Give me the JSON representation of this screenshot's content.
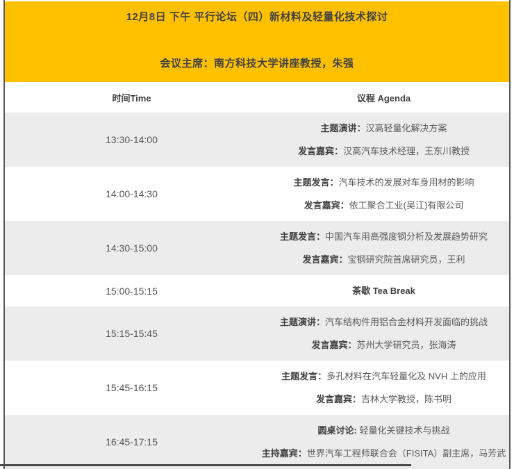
{
  "banner": {
    "title": "12月8日 下午 平行论坛（四）新材料及轻量化技术探讨",
    "chair": "会议主席：南方科技大学讲座教授，朱强"
  },
  "table": {
    "columns": {
      "time": "时间Time",
      "agenda": "议程 Agenda"
    },
    "rows": [
      {
        "time": "13:30-14:00",
        "lines": [
          {
            "label": "主题演讲：",
            "text": "汉高轻量化解决方案"
          },
          {
            "label": "发言嘉宾：",
            "text": "汉高汽车技术经理，王东川教授"
          }
        ]
      },
      {
        "time": "14:00-14:30",
        "lines": [
          {
            "label": "主题发言：",
            "text": "汽车技术的发展对车身用材的影响"
          },
          {
            "label": "发言嘉宾：",
            "text": "依工聚合工业(吴江)有限公司"
          }
        ]
      },
      {
        "time": "14:30-15:00",
        "lines": [
          {
            "label": "主题发言：",
            "text": "中国汽车用高强度钢分析及发展趋势研究"
          },
          {
            "label": "发言嘉宾：",
            "text": "宝钢研究院首席研究员，王利"
          }
        ]
      },
      {
        "time": "15:00-15:15",
        "lines": [
          {
            "label": "茶歇 Tea Break",
            "text": ""
          }
        ]
      },
      {
        "time": "15:15-15:45",
        "lines": [
          {
            "label": "主题演讲：",
            "text": "汽车结构件用铝合金材料开发面临的挑战"
          },
          {
            "label": "发言嘉宾：",
            "text": "苏州大学研究员，张海涛"
          }
        ]
      },
      {
        "time": "15:45-16:15",
        "lines": [
          {
            "label": "主题发言：",
            "text": "多孔材料在汽车轻量化及 NVH 上的应用"
          },
          {
            "label": "发言嘉宾：",
            "text": "吉林大学教授，陈书明"
          }
        ]
      },
      {
        "time": "16:45-17:15",
        "lines": [
          {
            "label": "圆桌讨论: ",
            "text": "轻量化关键技术与挑战"
          },
          {
            "label": "主持嘉宾：",
            "text": "世界汽车工程师联合会（FISITA）副主席，马芳武"
          }
        ]
      }
    ]
  },
  "colors": {
    "banner_yellow": "#FFC000",
    "row_shade_gray": "#ECECEC",
    "side_border_gray": "#595959",
    "bottom_divider_gray": "#4B4B4B",
    "heading_text": "#424242",
    "label_text": "#3F3F3F",
    "body_text": "#595959"
  }
}
